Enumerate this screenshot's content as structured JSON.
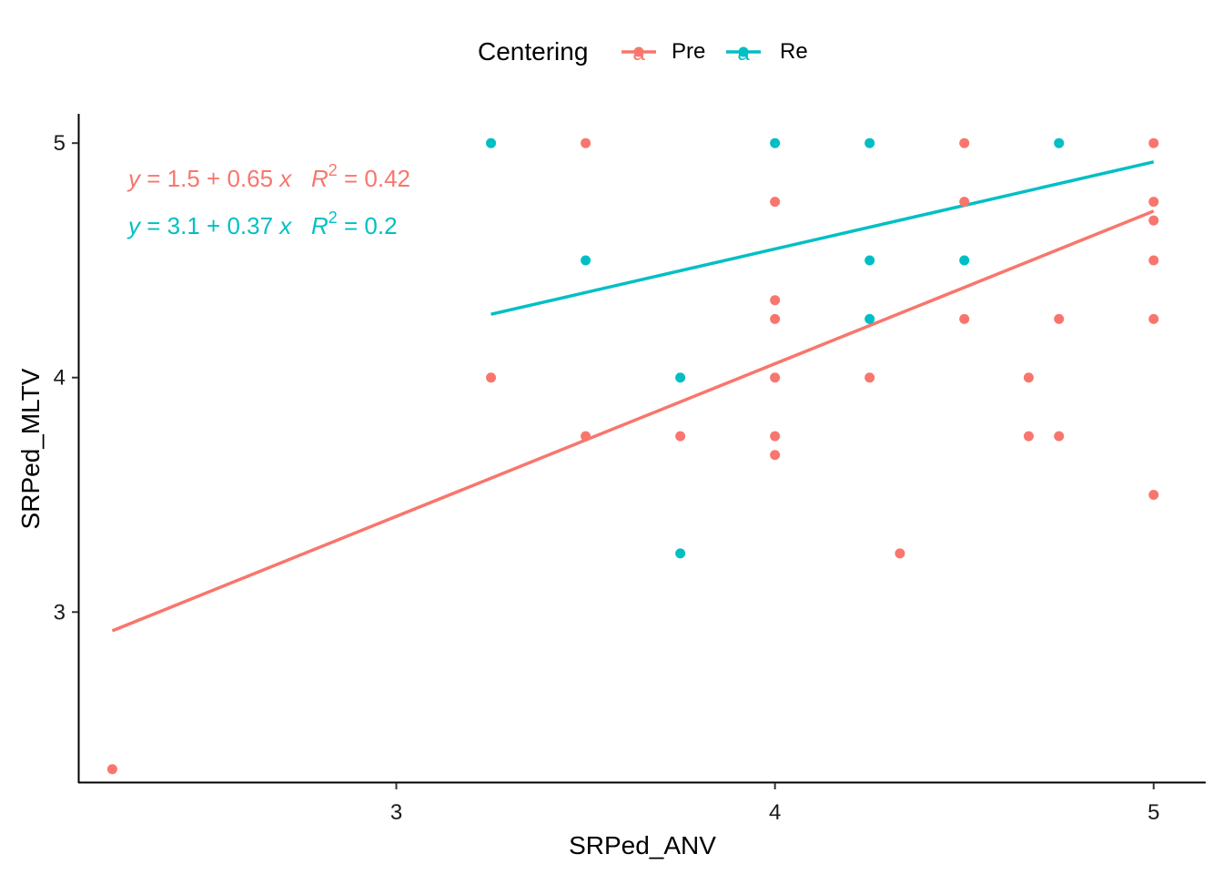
{
  "chart_data": {
    "type": "scatter",
    "title": "",
    "xlabel": "SRPed_ANV",
    "ylabel": "SRPed_MLTV",
    "xlim": [
      2.1625,
      5.1375
    ],
    "ylim": [
      2.275,
      5.125
    ],
    "xticks": [
      3,
      4,
      5
    ],
    "yticks": [
      3,
      4,
      5
    ],
    "xtick_labels": [
      "3",
      "4",
      "5"
    ],
    "ytick_labels": [
      "3",
      "4",
      "5"
    ],
    "grid": false,
    "legend": {
      "title": "Centering",
      "position": "top",
      "glyph": "a"
    },
    "series": [
      {
        "name": "Pre",
        "color": "#F8766D",
        "points": [
          [
            2.25,
            2.33
          ],
          [
            3.25,
            4.0
          ],
          [
            3.5,
            5.0
          ],
          [
            3.5,
            3.75
          ],
          [
            3.75,
            3.75
          ],
          [
            4.0,
            4.75
          ],
          [
            4.0,
            4.33
          ],
          [
            4.0,
            4.25
          ],
          [
            4.0,
            4.0
          ],
          [
            4.0,
            3.75
          ],
          [
            4.0,
            3.67
          ],
          [
            4.25,
            4.0
          ],
          [
            4.33,
            3.25
          ],
          [
            4.5,
            5.0
          ],
          [
            4.5,
            4.75
          ],
          [
            4.5,
            4.25
          ],
          [
            4.67,
            4.0
          ],
          [
            4.67,
            3.75
          ],
          [
            4.75,
            4.25
          ],
          [
            4.75,
            3.75
          ],
          [
            5.0,
            5.0
          ],
          [
            5.0,
            4.75
          ],
          [
            5.0,
            4.67
          ],
          [
            5.0,
            4.5
          ],
          [
            5.0,
            4.25
          ],
          [
            5.0,
            3.5
          ]
        ],
        "fit": {
          "x": [
            2.25,
            5.0
          ],
          "y": [
            2.92,
            4.71
          ]
        },
        "equation": {
          "y_var": "y",
          "intercept": "1.5",
          "slope": "0.65",
          "x_var": "x",
          "r2_var": "R",
          "r2_exp": "2",
          "r2": "0.42"
        }
      },
      {
        "name": "Re",
        "color": "#00BFC4",
        "points": [
          [
            3.25,
            5.0
          ],
          [
            3.5,
            4.5
          ],
          [
            3.75,
            4.0
          ],
          [
            3.75,
            3.25
          ],
          [
            4.0,
            5.0
          ],
          [
            4.25,
            5.0
          ],
          [
            4.25,
            4.5
          ],
          [
            4.25,
            4.25
          ],
          [
            4.5,
            4.5
          ],
          [
            4.75,
            5.0
          ]
        ],
        "fit": {
          "x": [
            3.25,
            5.0
          ],
          "y": [
            4.27,
            4.92
          ]
        },
        "equation": {
          "y_var": "y",
          "intercept": "3.1",
          "slope": "0.37",
          "x_var": "x",
          "r2_var": "R",
          "r2_exp": "2",
          "r2": "0.2"
        }
      }
    ]
  }
}
